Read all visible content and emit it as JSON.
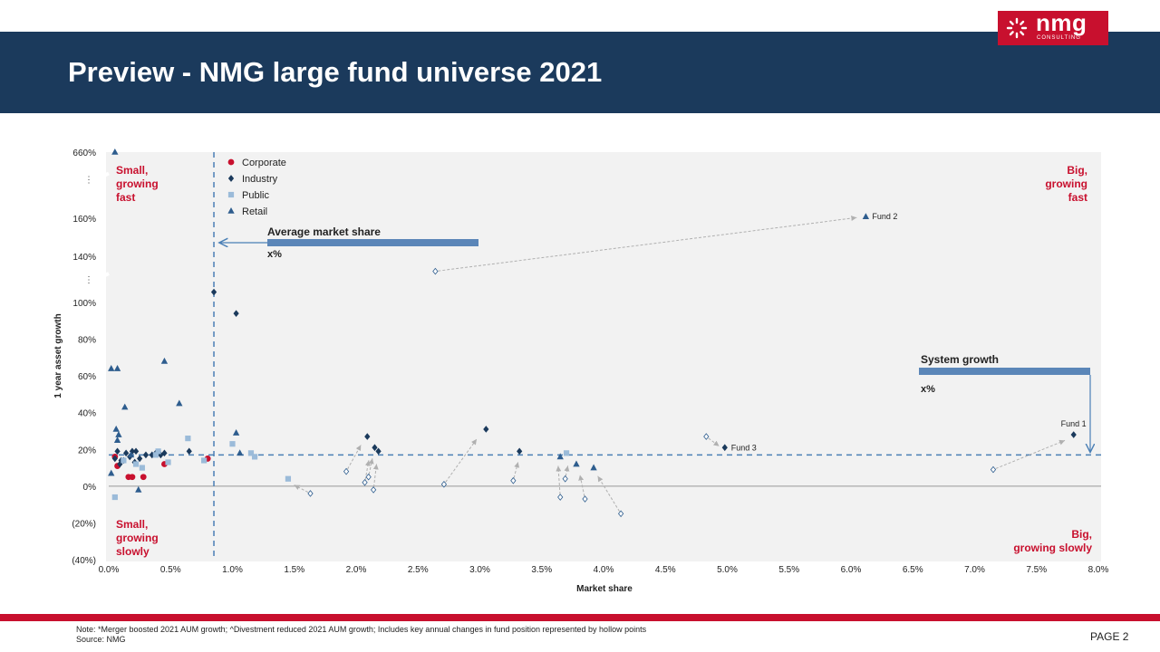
{
  "header": {
    "title": "Preview - NMG large fund universe 2021"
  },
  "logo": {
    "name": "nmg",
    "sub": "CONSULTING"
  },
  "footer": {
    "note": "Note: *Merger boosted 2021 AUM growth; ^Divestment reduced 2021 AUM growth; Includes key annual changes in fund position represented by hollow points",
    "source": "Source: NMG",
    "page": "PAGE  2"
  },
  "colors": {
    "header_bg": "#1b3a5c",
    "accent_red": "#c8102e",
    "corporate": "#c8102e",
    "industry": "#1b3a5c",
    "public": "#9bbbd9",
    "retail": "#2e5d8e",
    "plot_bg": "#f2f2f2",
    "reference": "#4a7fb5",
    "arrow": "#b0b0b0"
  },
  "chart_data": {
    "type": "scatter",
    "xlabel": "Market share",
    "ylabel": "1 year asset growth",
    "x_ticks": [
      "0.0%",
      "0.5%",
      "1.0%",
      "1.5%",
      "2.0%",
      "2.5%",
      "3.0%",
      "3.5%",
      "4.0%",
      "4.5%",
      "5.0%",
      "5.5%",
      "6.0%",
      "6.5%",
      "7.0%",
      "7.5%",
      "8.0%"
    ],
    "y_ticks": [
      "660%",
      "160%",
      "140%",
      "100%",
      "80%",
      "60%",
      "40%",
      "20%",
      "0%",
      "(20%)",
      "(40%)"
    ],
    "xlim": [
      0,
      8
    ],
    "ylim": [
      -40,
      660
    ],
    "y_axis_breaks": [
      "160% - 660%",
      "100% - 140%"
    ],
    "grid": false,
    "legend_position": "top-left",
    "legend": [
      "Corporate",
      "Industry",
      "Public",
      "Retail"
    ],
    "quadrants": {
      "top_left": "Small,\ngrowing\nfast",
      "top_right": "Big,\ngrowing\nfast",
      "bottom_left": "Small,\ngrowing\nslowly",
      "bottom_right": "Big,\ngrowing slowly"
    },
    "reference_lines": {
      "average_market_share": {
        "label": "Average market share",
        "value_label": "x%",
        "x": 0.85
      },
      "system_growth": {
        "label": "System growth",
        "value_label": "x%",
        "y": 17
      }
    },
    "series": [
      {
        "name": "Corporate",
        "marker": "circle",
        "points": [
          [
            0.05,
            16
          ],
          [
            0.07,
            11
          ],
          [
            0.16,
            5
          ],
          [
            0.19,
            5
          ],
          [
            0.28,
            5
          ],
          [
            0.45,
            12
          ],
          [
            0.8,
            15
          ]
        ]
      },
      {
        "name": "Industry",
        "marker": "diamond",
        "points": [
          [
            0.05,
            15
          ],
          [
            0.07,
            19
          ],
          [
            0.09,
            12
          ],
          [
            0.1,
            14
          ],
          [
            0.12,
            14
          ],
          [
            0.14,
            18
          ],
          [
            0.17,
            16
          ],
          [
            0.19,
            19
          ],
          [
            0.21,
            13
          ],
          [
            0.22,
            19
          ],
          [
            0.25,
            15
          ],
          [
            0.3,
            17
          ],
          [
            0.35,
            17
          ],
          [
            0.38,
            18
          ],
          [
            0.42,
            17
          ],
          [
            0.45,
            18
          ],
          [
            0.65,
            19
          ],
          [
            0.85,
            109
          ],
          [
            1.03,
            94
          ],
          [
            2.09,
            27
          ],
          [
            2.15,
            21
          ],
          [
            2.18,
            19
          ],
          [
            3.05,
            31
          ],
          [
            3.32,
            19
          ],
          [
            4.98,
            21
          ],
          [
            7.8,
            28
          ]
        ]
      },
      {
        "name": "Public",
        "marker": "square",
        "points": [
          [
            0.05,
            -6
          ],
          [
            0.12,
            14
          ],
          [
            0.22,
            12
          ],
          [
            0.27,
            10
          ],
          [
            0.38,
            17
          ],
          [
            0.4,
            19
          ],
          [
            0.48,
            13
          ],
          [
            0.64,
            26
          ],
          [
            0.77,
            14
          ],
          [
            1.0,
            23
          ],
          [
            1.15,
            18
          ],
          [
            1.18,
            16
          ],
          [
            1.45,
            4
          ],
          [
            3.7,
            18
          ]
        ]
      },
      {
        "name": "Retail",
        "marker": "triangle",
        "points": [
          [
            0.05,
            660
          ],
          [
            0.02,
            64
          ],
          [
            0.07,
            64
          ],
          [
            0.06,
            31
          ],
          [
            0.08,
            28
          ],
          [
            0.07,
            25
          ],
          [
            0.13,
            43
          ],
          [
            0.02,
            7
          ],
          [
            0.18,
            17
          ],
          [
            0.24,
            -2
          ],
          [
            0.45,
            68
          ],
          [
            0.57,
            45
          ],
          [
            1.03,
            29
          ],
          [
            1.06,
            18
          ],
          [
            3.65,
            16
          ],
          [
            3.78,
            12
          ],
          [
            3.92,
            10
          ],
          [
            6.12,
            172
          ]
        ]
      }
    ],
    "previous_positions": [
      {
        "from": [
          2.64,
          127
        ],
        "to": [
          6.09,
          170
        ]
      },
      {
        "from": [
          1.63,
          -4
        ],
        "to": [
          1.46,
          2
        ]
      },
      {
        "from": [
          1.92,
          8
        ],
        "to": [
          2.06,
          25
        ]
      },
      {
        "from": [
          2.07,
          2
        ],
        "to": [
          2.11,
          17
        ]
      },
      {
        "from": [
          2.1,
          5
        ],
        "to": [
          2.14,
          18
        ]
      },
      {
        "from": [
          2.14,
          -2
        ],
        "to": [
          2.17,
          15
        ]
      },
      {
        "from": [
          2.71,
          1
        ],
        "to": [
          3.0,
          28
        ]
      },
      {
        "from": [
          3.27,
          3
        ],
        "to": [
          3.32,
          16
        ]
      },
      {
        "from": [
          3.65,
          -6
        ],
        "to": [
          3.63,
          14
        ]
      },
      {
        "from": [
          3.69,
          4
        ],
        "to": [
          3.72,
          14
        ]
      },
      {
        "from": [
          3.85,
          -7
        ],
        "to": [
          3.8,
          9
        ]
      },
      {
        "from": [
          4.14,
          -15
        ],
        "to": [
          3.93,
          8
        ]
      },
      {
        "from": [
          4.83,
          27
        ],
        "to": [
          4.97,
          20
        ]
      },
      {
        "from": [
          7.15,
          9
        ],
        "to": [
          7.77,
          26
        ]
      }
    ],
    "annotations": [
      {
        "text": "Fund 1",
        "x": 7.8,
        "y": 28
      },
      {
        "text": "Fund 2",
        "x": 6.12,
        "y": 172
      },
      {
        "text": "Fund 3",
        "x": 4.98,
        "y": 21
      }
    ]
  }
}
